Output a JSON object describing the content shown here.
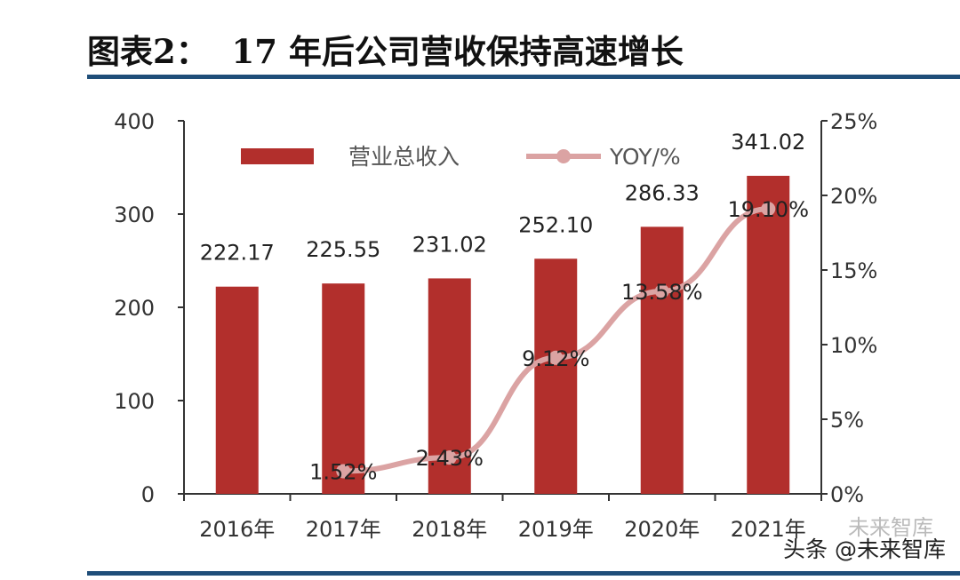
{
  "figure": {
    "title": "图表2：  17 年后公司营收保持高速增长"
  },
  "watermark": {
    "text": "头条 @未来智库",
    "brand": "未来智库"
  },
  "colors": {
    "bar": "#b22f2c",
    "line": "#dba3a3",
    "axis": "#333333",
    "tick_text": "#333333",
    "rule": "#1f4e79"
  },
  "chart_data": {
    "type": "bar",
    "categories": [
      "2016年",
      "2017年",
      "2018年",
      "2019年",
      "2020年",
      "2021年"
    ],
    "series": [
      {
        "name": "营业总收入",
        "type": "bar",
        "axis": "left",
        "values": [
          222.17,
          225.55,
          231.02,
          252.1,
          286.33,
          341.02
        ],
        "labels": [
          "222.17",
          "225.55",
          "231.02",
          "252.10",
          "286.33",
          "341.02"
        ]
      },
      {
        "name": "YOY/%",
        "type": "line",
        "axis": "right",
        "x": [
          "2017年",
          "2018年",
          "2019年",
          "2020年",
          "2021年"
        ],
        "values": [
          1.52,
          2.43,
          9.12,
          13.58,
          19.1
        ],
        "labels": [
          "1.52%",
          "2.43%",
          "9.12%",
          "13.58%",
          "19.10%"
        ]
      }
    ],
    "ylim": [
      0,
      400
    ],
    "yticks": [
      "0",
      "100",
      "200",
      "300",
      "400"
    ],
    "ylim_right": [
      0,
      25
    ],
    "yticks_right": [
      "0%",
      "5%",
      "10%",
      "15%",
      "20%",
      "25%"
    ],
    "legend": "top-left",
    "grid": false
  }
}
